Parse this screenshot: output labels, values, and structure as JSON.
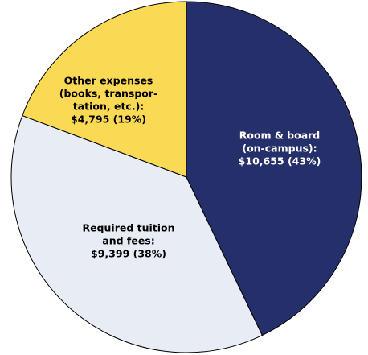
{
  "chart_data": {
    "type": "pie",
    "categories": [
      [
        "Room & board",
        "(on-campus):"
      ],
      [
        "Required tuition",
        "and fees:"
      ],
      [
        "Other expenses",
        "(books, transpor-",
        "tation, etc.):"
      ]
    ],
    "values": [
      10655,
      9399,
      4795
    ],
    "value_labels": [
      "$10,655 (43%)",
      "$9,399 (38%)",
      "$4,795 (19%)"
    ],
    "colors": [
      "#25306a",
      "#e8ecf5",
      "#fad955"
    ],
    "label_colors": [
      "#ffffff",
      "#000000",
      "#000000"
    ]
  }
}
